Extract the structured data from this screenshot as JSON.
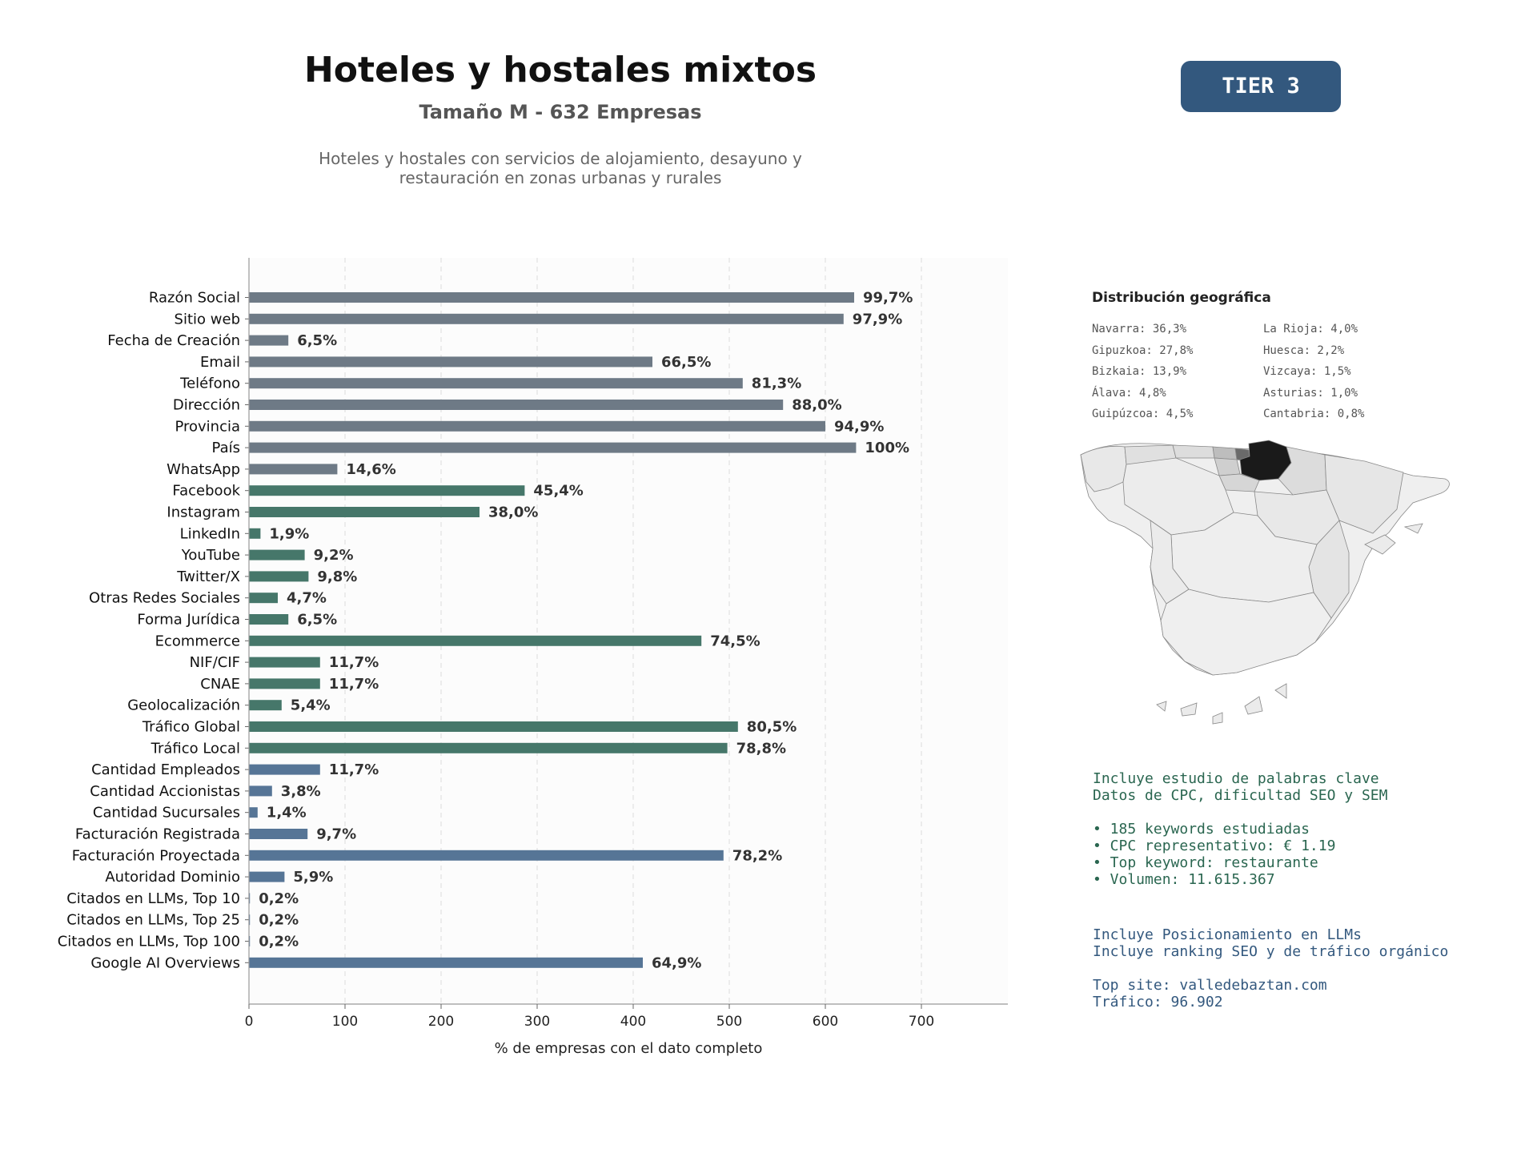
{
  "header": {
    "title": "Hoteles y hostales mixtos",
    "subtitle": "Tamaño M - 632 Empresas",
    "description_line1": "Hoteles y hostales con servicios de alojamiento, desayuno y",
    "description_line2": "restauración en zonas urbanas y rurales",
    "tier_badge": "TIER 3"
  },
  "colors": {
    "gray": "#6e7a86",
    "green": "#46776a",
    "blue": "#567596",
    "tier_badge": "#33587e"
  },
  "chart_data": {
    "type": "bar",
    "orientation": "horizontal",
    "xlabel": "% de empresas con el dato completo",
    "xlim": [
      0,
      790
    ],
    "xticks": [
      0,
      100,
      200,
      300,
      400,
      500,
      600,
      700
    ],
    "grid": "vertical dashed",
    "categories": [
      "Razón Social",
      "Sitio web",
      "Fecha de Creación",
      "Email",
      "Teléfono",
      "Dirección",
      "Provincia",
      "País",
      "WhatsApp",
      "Facebook",
      "Instagram",
      "LinkedIn",
      "YouTube",
      "Twitter/X",
      "Otras Redes Sociales",
      "Forma Jurídica",
      "Ecommerce",
      "NIF/CIF",
      "CNAE",
      "Geolocalización",
      "Tráfico Global",
      "Tráfico Local",
      "Cantidad Empleados",
      "Cantidad Accionistas",
      "Cantidad Sucursales",
      "Facturación Registrada",
      "Facturación Proyectada",
      "Autoridad Dominio",
      "Citados en LLMs, Top 10",
      "Citados en LLMs, Top 25",
      "Citados en LLMs, Top 100",
      "Google AI Overviews"
    ],
    "values": [
      630,
      619,
      41,
      420,
      514,
      556,
      600,
      632,
      92,
      287,
      240,
      12,
      58,
      62,
      30,
      41,
      471,
      74,
      74,
      34,
      509,
      498,
      74,
      24,
      9,
      61,
      494,
      37,
      1,
      1,
      1,
      410
    ],
    "labels": [
      "99,7%",
      "97,9%",
      "6,5%",
      "66,5%",
      "81,3%",
      "88,0%",
      "94,9%",
      "100%",
      "14,6%",
      "45,4%",
      "38,0%",
      "1,9%",
      "9,2%",
      "9,8%",
      "4,7%",
      "6,5%",
      "74,5%",
      "11,7%",
      "11,7%",
      "5,4%",
      "80,5%",
      "78,8%",
      "11,7%",
      "3,8%",
      "1,4%",
      "9,7%",
      "78,2%",
      "5,9%",
      "0,2%",
      "0,2%",
      "0,2%",
      "64,9%"
    ],
    "groups": [
      "gray",
      "gray",
      "gray",
      "gray",
      "gray",
      "gray",
      "gray",
      "gray",
      "gray",
      "green",
      "green",
      "green",
      "green",
      "green",
      "green",
      "green",
      "green",
      "green",
      "green",
      "green",
      "green",
      "green",
      "blue",
      "blue",
      "blue",
      "blue",
      "blue",
      "blue",
      "blue",
      "blue",
      "blue",
      "blue"
    ]
  },
  "geo": {
    "title": "Distribución geográfica",
    "col1": [
      "Navarra: 36,3%",
      "Gipuzkoa: 27,8%",
      "Bizkaia: 13,9%",
      "Álava: 4,8%",
      "Guipúzcoa: 4,5%"
    ],
    "col2": [
      "La Rioja: 4,0%",
      "Huesca: 2,2%",
      "Vizcaya: 1,5%",
      "Asturias: 1,0%",
      "Cantabria: 0,8%"
    ]
  },
  "keywords": {
    "lines": [
      "Incluye estudio de palabras clave",
      "Datos de CPC, dificultad SEO y SEM",
      "",
      "• 185 keywords estudiadas",
      "• CPC representativo: € 1.19",
      "• Top keyword: restaurante",
      "• Volumen: 11.615.367"
    ]
  },
  "llm": {
    "lines": [
      "Incluye Posicionamiento en LLMs",
      "Incluye ranking SEO y de tráfico orgánico",
      "",
      "Top site: valledebaztan.com",
      "Tráfico: 96.902"
    ]
  }
}
